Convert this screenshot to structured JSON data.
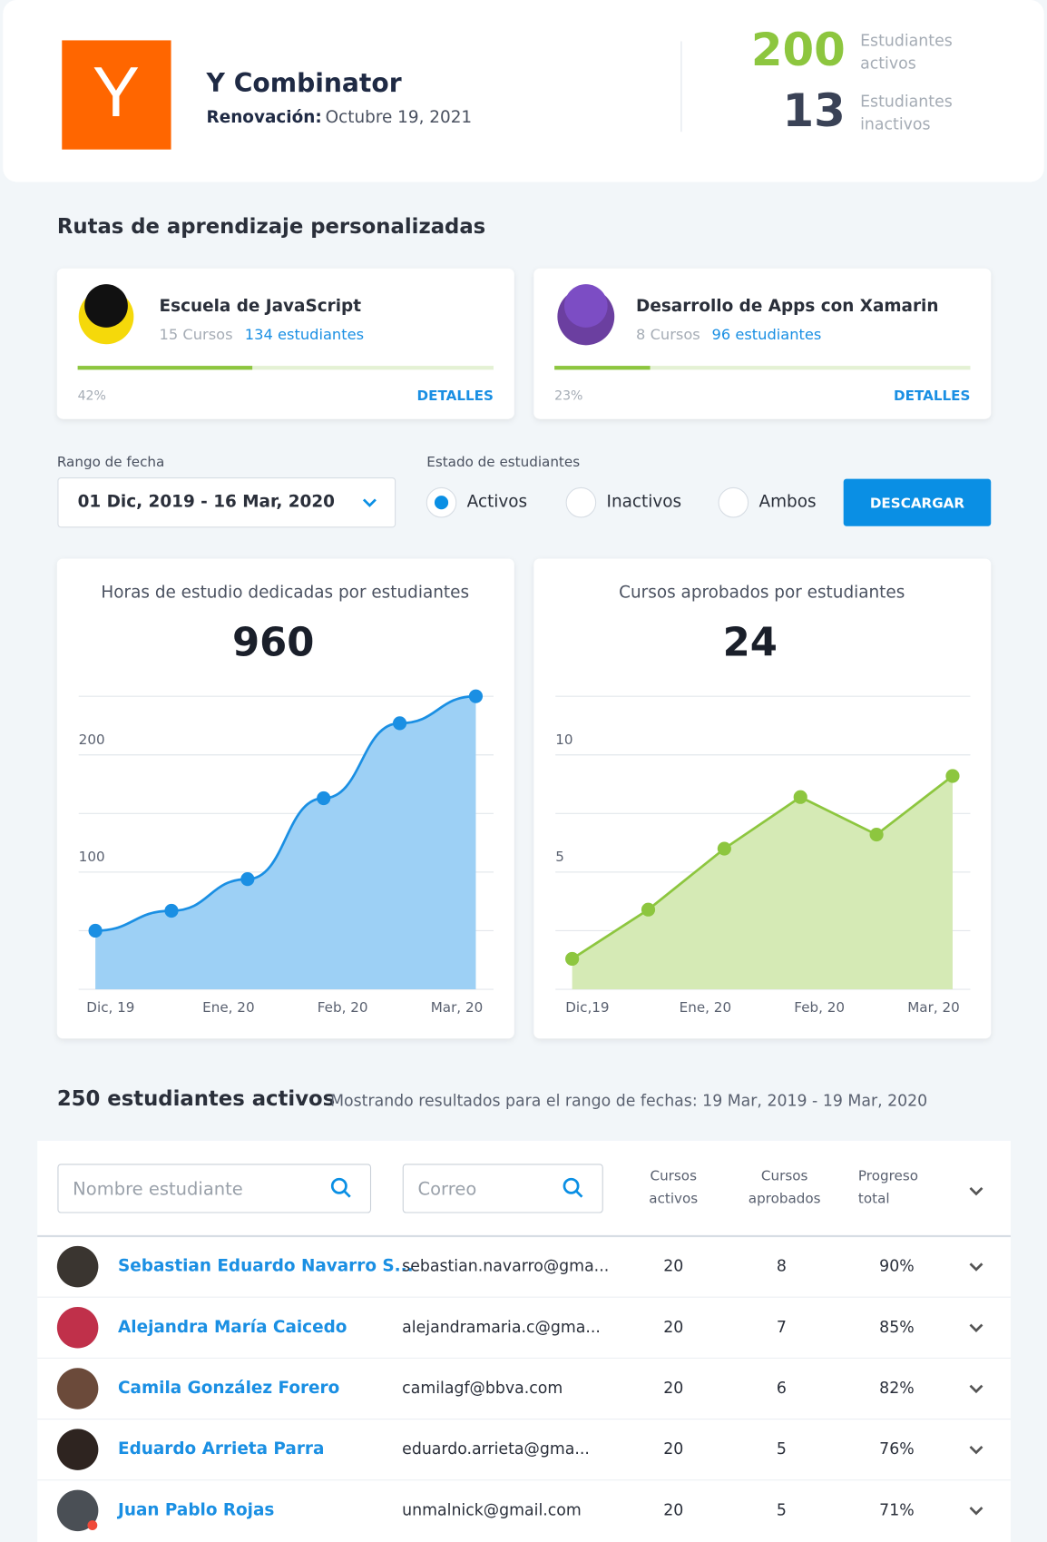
{
  "header": {
    "logo": "Y",
    "company": "Y Combinator",
    "renewal_label": "Renovación:",
    "renewal_date": "Octubre 19, 2021",
    "stats": [
      {
        "value": 200,
        "label": [
          "Estudiantes",
          "activos"
        ]
      },
      {
        "value": 13,
        "label": [
          "Estudiantes",
          "inactivos"
        ]
      }
    ]
  },
  "paths": {
    "title": "Rutas de aprendizaje personalizadas",
    "cards": [
      {
        "name": "Escuela de JavaScript",
        "courses": "15 Cursos",
        "students": "134 estudiantes",
        "progress": 42,
        "progress_label": "42%",
        "action": "DETALLES"
      },
      {
        "name": "Desarrollo de Apps con Xamarin",
        "courses": "8 Cursos",
        "students": "96 estudiantes",
        "progress": 23,
        "progress_label": "23%",
        "action": "DETALLES"
      }
    ]
  },
  "filters": {
    "date_label": "Rango de fecha",
    "date_value": "01 Dic, 2019 - 16 Mar, 2020",
    "status_label": "Estado de estudiantes",
    "options": [
      "Activos",
      "Inactivos",
      "Ambos"
    ],
    "selected": 0,
    "button": "DESCARGAR"
  },
  "chart_data": [
    {
      "type": "area",
      "title": "Horas de estudio dedicadas por estudiantes",
      "total": "960",
      "color": "#1a8fe3",
      "fill": "#9dd0f5",
      "x": [
        0,
        1,
        2,
        3,
        4,
        5
      ],
      "values": [
        50,
        67,
        94,
        163,
        227,
        250
      ],
      "xlim": [
        0,
        5
      ],
      "ylim": [
        0,
        250
      ],
      "yticks": [
        100,
        200
      ],
      "xticks": [
        {
          "value": 0.2,
          "label": "Dic, 19"
        },
        {
          "value": 1.75,
          "label": "Ene, 20"
        },
        {
          "value": 3.25,
          "label": "Feb, 20"
        },
        {
          "value": 4.75,
          "label": "Mar, 20"
        }
      ],
      "grid": true
    },
    {
      "type": "area",
      "title": "Cursos aprobados por estudiantes",
      "total": "24",
      "color": "#8dc63f",
      "fill": "#d5eab5",
      "x": [
        0,
        1,
        2,
        3,
        4,
        5
      ],
      "values": [
        1.3,
        3.4,
        6,
        8.2,
        6.6,
        9.1
      ],
      "xlim": [
        0,
        5
      ],
      "ylim": [
        0,
        12.5
      ],
      "yticks": [
        5,
        10
      ],
      "xticks": [
        {
          "value": 0.2,
          "label": "Dic,19"
        },
        {
          "value": 1.75,
          "label": "Ene, 20"
        },
        {
          "value": 3.25,
          "label": "Feb, 20"
        },
        {
          "value": 4.75,
          "label": "Mar, 20"
        }
      ],
      "grid": true
    }
  ],
  "table": {
    "heading": "250 estudiantes activos",
    "subtitle": "Mostrando resultados para el rango de fechas: 19 Mar, 2019 - 19 Mar, 2020",
    "search_name": "Nombre estudiante",
    "search_email": "Correo",
    "columns": [
      [
        "Cursos",
        "activos"
      ],
      [
        "Cursos",
        "aprobados"
      ],
      [
        "Progreso",
        "total"
      ]
    ],
    "rows": [
      [
        "Sebastian Eduardo Navarro S...",
        "sebastian.navarro@gma...",
        "20",
        "8",
        "90%"
      ],
      [
        "Alejandra María Caicedo",
        "alejandramaria.c@gma...",
        "20",
        "7",
        "85%"
      ],
      [
        "Camila González Forero",
        "camilagf@bbva.com",
        "20",
        "6",
        "82%"
      ],
      [
        "Eduardo Arrieta Parra",
        "eduardo.arrieta@gma...",
        "20",
        "5",
        "76%"
      ],
      [
        "Juan Pablo Rojas",
        "unmalnick@gmail.com",
        "20",
        "5",
        "71%"
      ]
    ]
  }
}
